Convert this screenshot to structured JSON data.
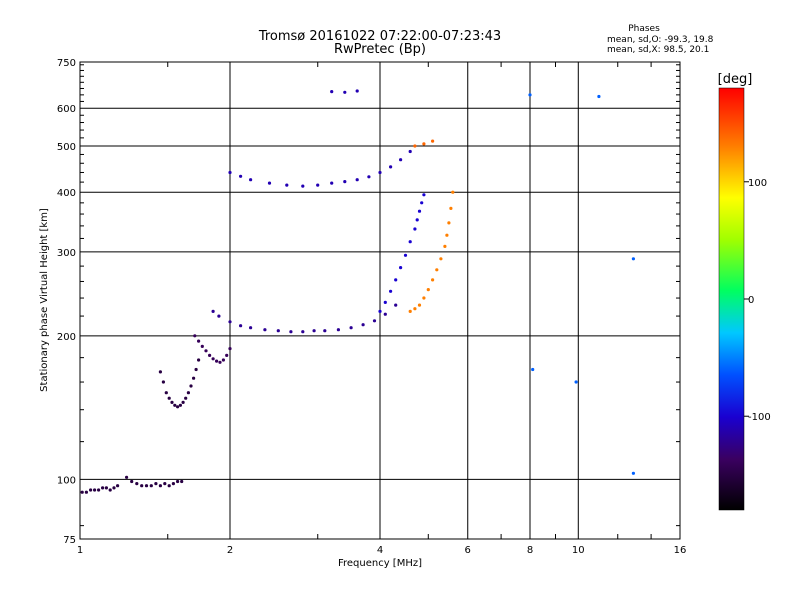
{
  "chart_data": {
    "type": "scatter",
    "title": "Tromsø 20161022 07:22:00-07:23:43",
    "subtitle": "RwPretec (Bp)",
    "xlabel": "Frequency [MHz]",
    "ylabel": "Stationary phase Virtual Height [km]",
    "x_scale": "log",
    "y_scale": "log",
    "xlim": [
      1,
      16
    ],
    "ylim": [
      75,
      750
    ],
    "x_ticks": [
      1,
      2,
      4,
      6,
      8,
      10,
      16
    ],
    "y_ticks": [
      75,
      100,
      200,
      300,
      400,
      500,
      600,
      750
    ],
    "grid": true,
    "x_gridlines": [
      2,
      4,
      6,
      8,
      10
    ],
    "y_gridlines": [
      100,
      200,
      300,
      400,
      500,
      600
    ],
    "stats": {
      "heading": "Phases",
      "line_o": "mean, sd,O: -99.3, 19.8",
      "line_x": "mean, sd,X:  98.5, 20.1"
    },
    "colorbar": {
      "label": "[deg]",
      "range": [
        -180,
        180
      ],
      "ticks": [
        100,
        0,
        -100
      ]
    },
    "series": [
      {
        "polarization": "O",
        "phase_deg": -150,
        "x": [
          1.01,
          1.03,
          1.05,
          1.07,
          1.09,
          1.11,
          1.13,
          1.15,
          1.17,
          1.19,
          1.24,
          1.27,
          1.3,
          1.33,
          1.36,
          1.39,
          1.42,
          1.45,
          1.48,
          1.51,
          1.54,
          1.57,
          1.6
        ],
        "y": [
          94,
          94,
          95,
          95,
          95,
          96,
          96,
          95,
          96,
          97,
          101,
          99,
          98,
          97,
          97,
          97,
          98,
          97,
          98,
          97,
          98,
          99,
          99
        ]
      },
      {
        "polarization": "O",
        "phase_deg": -150,
        "x": [
          1.45,
          1.47,
          1.49,
          1.51,
          1.53,
          1.55,
          1.57,
          1.59,
          1.61,
          1.63,
          1.65,
          1.67,
          1.69,
          1.71,
          1.73
        ],
        "y": [
          168,
          160,
          152,
          148,
          145,
          143,
          142,
          143,
          145,
          148,
          152,
          157,
          163,
          170,
          178
        ]
      },
      {
        "polarization": "O",
        "phase_deg": -140,
        "x": [
          1.7,
          1.73,
          1.76,
          1.79,
          1.82,
          1.85,
          1.88,
          1.91,
          1.94,
          1.97,
          2.0
        ],
        "y": [
          200,
          195,
          190,
          186,
          182,
          179,
          177,
          176,
          178,
          182,
          188
        ]
      },
      {
        "polarization": "O",
        "phase_deg": -120,
        "x": [
          1.85,
          1.9,
          2.0,
          2.1,
          2.2,
          2.35,
          2.5,
          2.65,
          2.8,
          2.95,
          3.1,
          3.3,
          3.5,
          3.7,
          3.9,
          4.1,
          4.3
        ],
        "y": [
          225,
          220,
          214,
          210,
          208,
          206,
          205,
          204,
          204,
          205,
          205,
          206,
          208,
          211,
          215,
          222,
          232
        ]
      },
      {
        "polarization": "O",
        "phase_deg": -100,
        "x": [
          4.0,
          4.1,
          4.2,
          4.3,
          4.4,
          4.5,
          4.6,
          4.7,
          4.75,
          4.8,
          4.85,
          4.9
        ],
        "y": [
          225,
          235,
          248,
          262,
          278,
          295,
          315,
          335,
          350,
          365,
          380,
          395
        ]
      },
      {
        "polarization": "O",
        "phase_deg": -110,
        "x": [
          2.0,
          2.1,
          2.2,
          2.4,
          2.6,
          2.8,
          3.0,
          3.2,
          3.4,
          3.6,
          3.8,
          4.0,
          4.2,
          4.4,
          4.6
        ],
        "y": [
          440,
          432,
          425,
          418,
          414,
          412,
          414,
          418,
          421,
          425,
          431,
          440,
          452,
          468,
          487
        ]
      },
      {
        "polarization": "O",
        "phase_deg": -110,
        "x": [
          3.2,
          3.4,
          3.6
        ],
        "y": [
          650,
          648,
          652
        ]
      },
      {
        "polarization": "X",
        "phase_deg": 130,
        "x": [
          4.6,
          4.7,
          4.8,
          4.9,
          5.0,
          5.1,
          5.2,
          5.3,
          5.4,
          5.45,
          5.5,
          5.55,
          5.6
        ],
        "y": [
          225,
          228,
          232,
          240,
          250,
          262,
          275,
          290,
          308,
          325,
          345,
          370,
          400
        ]
      },
      {
        "polarization": "X",
        "phase_deg": 140,
        "x": [
          4.7,
          4.9,
          5.1
        ],
        "y": [
          500,
          505,
          512
        ]
      },
      {
        "polarization": "scatter",
        "phase_deg": -60,
        "x": [
          8.0,
          8.1,
          9.9,
          11.0,
          12.9,
          12.9
        ],
        "y": [
          640,
          170,
          160,
          635,
          290,
          103
        ]
      }
    ]
  }
}
